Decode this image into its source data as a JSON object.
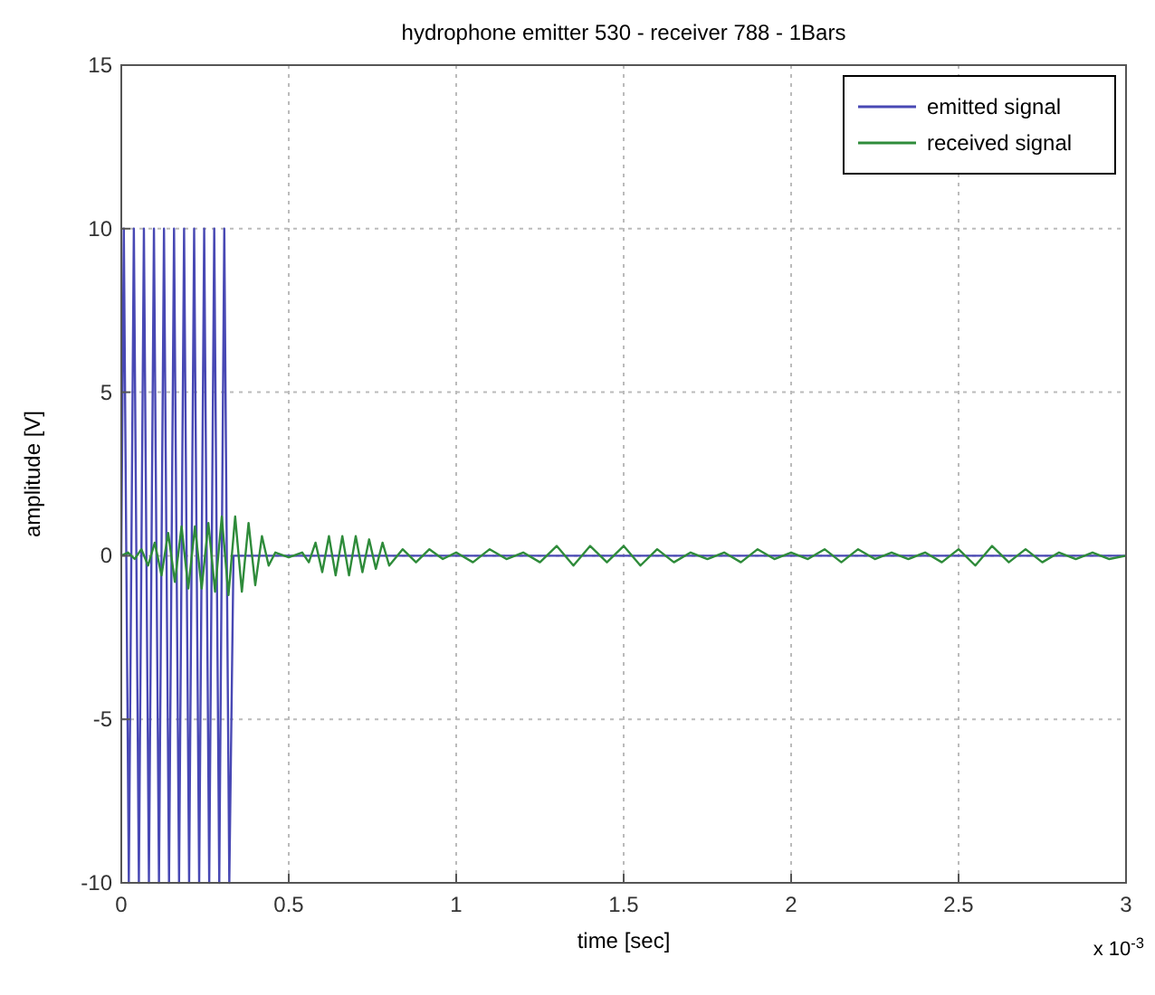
{
  "chart_data": {
    "type": "line",
    "title": "hydrophone emitter 530 - receiver 788 - 1Bars",
    "xlabel": "time [sec]",
    "ylabel": "amplitude [V]",
    "xlim": [
      0,
      3
    ],
    "xticks": [
      0,
      0.5,
      1,
      1.5,
      2,
      2.5,
      3
    ],
    "ylim": [
      -10,
      15
    ],
    "yticks": [
      -10,
      -5,
      0,
      5,
      10,
      15
    ],
    "grid": true,
    "legend": "top right",
    "line_style": "solid",
    "marker": "none",
    "annotations": [
      "x 10$^{-3}$"
    ],
    "series": [
      {
        "name": "emitted signal",
        "color": "#4848b4",
        "x": [
          0,
          0.0075,
          0.0225,
          0.0375,
          0.0525,
          0.0675,
          0.0825,
          0.0975,
          0.1125,
          0.1275,
          0.1425,
          0.1575,
          0.1725,
          0.1875,
          0.2025,
          0.2175,
          0.2325,
          0.2475,
          0.2625,
          0.2775,
          0.2925,
          0.3075,
          0.3225,
          0.335,
          3
        ],
        "values": [
          0,
          10,
          -10,
          10,
          -10,
          10,
          -10,
          10,
          -10,
          10,
          -10,
          10,
          -10,
          10,
          -10,
          10,
          -10,
          10,
          -10,
          10,
          -10,
          10,
          -10,
          0,
          0
        ]
      },
      {
        "name": "received signal",
        "color": "#2e8b3a",
        "x": [
          0,
          0.02,
          0.04,
          0.06,
          0.08,
          0.1,
          0.12,
          0.14,
          0.16,
          0.18,
          0.2,
          0.22,
          0.24,
          0.26,
          0.28,
          0.3,
          0.32,
          0.34,
          0.36,
          0.38,
          0.4,
          0.42,
          0.44,
          0.46,
          0.5,
          0.54,
          0.56,
          0.58,
          0.6,
          0.62,
          0.64,
          0.66,
          0.68,
          0.7,
          0.72,
          0.74,
          0.76,
          0.78,
          0.8,
          0.84,
          0.88,
          0.92,
          0.96,
          1,
          1.05,
          1.1,
          1.15,
          1.2,
          1.25,
          1.3,
          1.35,
          1.4,
          1.45,
          1.5,
          1.55,
          1.6,
          1.65,
          1.7,
          1.75,
          1.8,
          1.85,
          1.9,
          1.95,
          2,
          2.05,
          2.1,
          2.15,
          2.2,
          2.25,
          2.3,
          2.35,
          2.4,
          2.45,
          2.5,
          2.55,
          2.6,
          2.65,
          2.7,
          2.75,
          2.8,
          2.85,
          2.9,
          2.95,
          3
        ],
        "values": [
          0,
          0.1,
          -0.1,
          0.2,
          -0.3,
          0.4,
          -0.6,
          0.7,
          -0.8,
          0.9,
          -1,
          0.9,
          -1,
          1,
          -1.1,
          1.2,
          -1.2,
          1.2,
          -1.1,
          1,
          -0.9,
          0.6,
          -0.3,
          0.1,
          -0.05,
          0.1,
          -0.2,
          0.4,
          -0.5,
          0.6,
          -0.6,
          0.6,
          -0.6,
          0.6,
          -0.5,
          0.5,
          -0.4,
          0.4,
          -0.3,
          0.2,
          -0.2,
          0.2,
          -0.1,
          0.1,
          -0.2,
          0.2,
          -0.1,
          0.1,
          -0.2,
          0.3,
          -0.3,
          0.3,
          -0.2,
          0.3,
          -0.3,
          0.2,
          -0.2,
          0.1,
          -0.1,
          0.1,
          -0.2,
          0.2,
          -0.1,
          0.1,
          -0.1,
          0.2,
          -0.2,
          0.2,
          -0.1,
          0.1,
          -0.1,
          0.1,
          -0.2,
          0.2,
          -0.3,
          0.3,
          -0.2,
          0.2,
          -0.2,
          0.1,
          -0.1,
          0.1,
          -0.1,
          0
        ]
      }
    ]
  }
}
